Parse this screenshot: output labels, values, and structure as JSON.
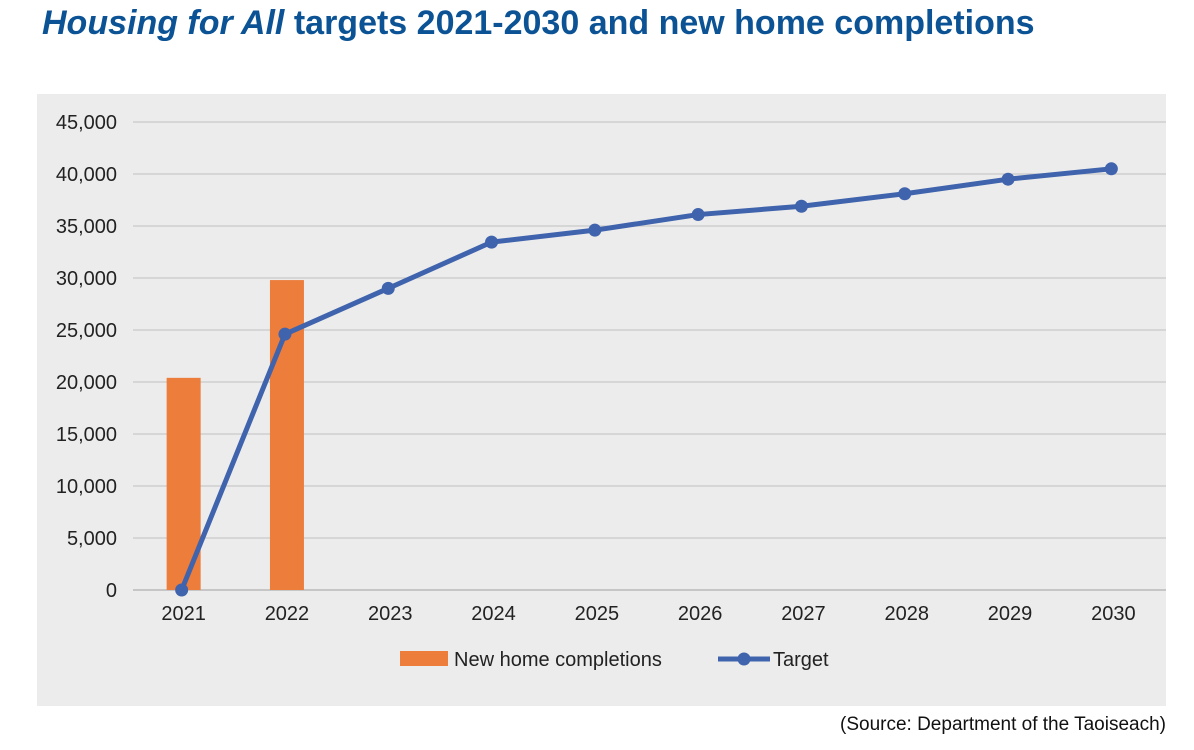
{
  "title": {
    "italic": "Housing for All",
    "rest": " targets 2021-2030 and new home completions"
  },
  "source": "(Source: Department of the Taoiseach)",
  "colors": {
    "title": "#0b5394",
    "bar": "#ed7d3b",
    "line": "#3f63ac",
    "grid": "#c8c8c8",
    "plot_background": "#ececec"
  },
  "chart_data": {
    "type": "bar",
    "categories": [
      "2021",
      "2022",
      "2023",
      "2024",
      "2025",
      "2026",
      "2027",
      "2028",
      "2029",
      "2030"
    ],
    "ylim": [
      0,
      45000
    ],
    "yticks": [
      "0",
      "5,000",
      "10,000",
      "15,000",
      "20,000",
      "25,000",
      "30,000",
      "35,000",
      "40,000",
      "45,000"
    ],
    "ytick_values": [
      0,
      5000,
      10000,
      15000,
      20000,
      25000,
      30000,
      35000,
      40000,
      45000
    ],
    "grid": true,
    "legend_position": "bottom",
    "series": [
      {
        "name": "New home completions",
        "type": "bar",
        "values": [
          20400,
          29800,
          null,
          null,
          null,
          null,
          null,
          null,
          null,
          null
        ]
      },
      {
        "name": "Target",
        "type": "line",
        "values": [
          0,
          24600,
          29000,
          33450,
          34600,
          36100,
          36900,
          38100,
          39500,
          40500
        ]
      }
    ]
  }
}
